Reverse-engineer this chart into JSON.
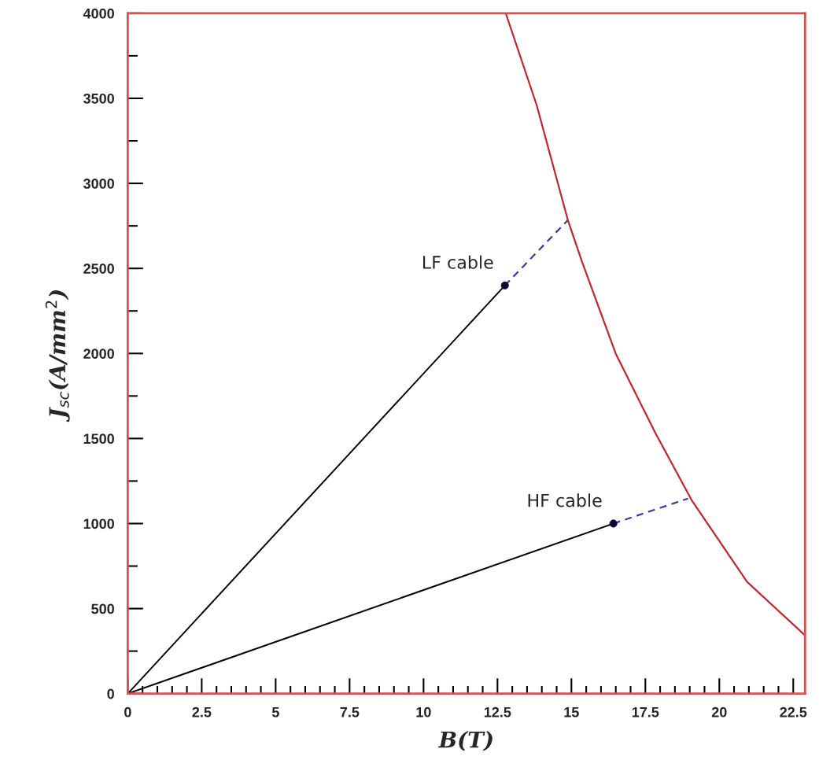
{
  "chart_data": {
    "type": "line",
    "xlabel": "B(T)",
    "ylabel": "J$_{sc}$(A/mm$^{2}$)",
    "xlim": [
      0,
      22.9
    ],
    "ylim": [
      0,
      4000
    ],
    "xticks": [
      0,
      {
        "value": 0.5,
        "label": null
      },
      {
        "value": 1,
        "label": null
      },
      {
        "value": 1.5,
        "label": null
      },
      {
        "value": 2,
        "label": null
      },
      2.5,
      {
        "value": 3,
        "label": null
      },
      {
        "value": 3.5,
        "label": null
      },
      {
        "value": 4,
        "label": null
      },
      {
        "value": 4.5,
        "label": null
      },
      5,
      {
        "value": 5.5,
        "label": null
      },
      {
        "value": 6,
        "label": null
      },
      {
        "value": 6.5,
        "label": null
      },
      {
        "value": 7,
        "label": null
      },
      7.5,
      {
        "value": 8,
        "label": null
      },
      {
        "value": 8.5,
        "label": null
      },
      {
        "value": 9,
        "label": null
      },
      {
        "value": 9.5,
        "label": null
      },
      10,
      {
        "value": 10.5,
        "label": null
      },
      {
        "value": 11,
        "label": null
      },
      {
        "value": 11.5,
        "label": null
      },
      {
        "value": 12,
        "label": null
      },
      12.5,
      {
        "value": 13,
        "label": null
      },
      {
        "value": 13.5,
        "label": null
      },
      {
        "value": 14,
        "label": null
      },
      {
        "value": 14.5,
        "label": null
      },
      15,
      {
        "value": 15.5,
        "label": null
      },
      {
        "value": 16,
        "label": null
      },
      {
        "value": 16.5,
        "label": null
      },
      {
        "value": 17,
        "label": null
      },
      17.5,
      {
        "value": 18,
        "label": null
      },
      {
        "value": 18.5,
        "label": null
      },
      {
        "value": 19,
        "label": null
      },
      {
        "value": 19.5,
        "label": null
      },
      20,
      {
        "value": 20.5,
        "label": null
      },
      {
        "value": 21,
        "label": null
      },
      {
        "value": 21.5,
        "label": null
      },
      {
        "value": 22,
        "label": null
      },
      22.5
    ],
    "yticks": [
      0,
      {
        "value": 250,
        "label": null
      },
      500,
      {
        "value": 750,
        "label": null
      },
      1000,
      {
        "value": 1250,
        "label": null
      },
      1500,
      {
        "value": 1750,
        "label": null
      },
      2000,
      {
        "value": 2250,
        "label": null
      },
      2500,
      {
        "value": 2750,
        "label": null
      },
      3000,
      {
        "value": 3250,
        "label": null
      },
      3500,
      {
        "value": 3750,
        "label": null
      },
      4000
    ],
    "grid": false,
    "legend": false,
    "series": [
      {
        "color": "#c0282d",
        "line_style": "solid",
        "x": [
          12.78,
          13.82,
          14.88,
          15.36,
          16.5,
          17.83,
          19.08,
          20.94,
          22.87
        ],
        "values": [
          4000,
          3463,
          2784,
          2538,
          1998,
          1535,
          1133,
          657,
          347
        ]
      },
      {
        "color": "#000000",
        "line_style": "solid",
        "x": [
          0,
          12.75
        ],
        "values": [
          0,
          2400
        ]
      },
      {
        "color": "#000000",
        "line_style": "solid",
        "x": [
          0,
          16.42
        ],
        "values": [
          0,
          1000
        ]
      },
      {
        "color": "#3a3aa0",
        "line_style": "dashed",
        "x": [
          12.75,
          14.88
        ],
        "values": [
          2400,
          2784
        ]
      },
      {
        "color": "#3a3aa0",
        "line_style": "dashed",
        "x": [
          16.42,
          18.94
        ],
        "values": [
          1000,
          1147
        ]
      },
      {
        "type": "scatter",
        "color": "#0a0a30",
        "marker": "circle",
        "x": [
          12.75,
          16.42
        ],
        "values": [
          2400,
          1000
        ]
      }
    ],
    "annotations": [
      {
        "text": "LF cable",
        "x": 12.75,
        "y": 2400
      },
      {
        "text": "HF cable",
        "x": 16.42,
        "y": 1000
      }
    ]
  }
}
